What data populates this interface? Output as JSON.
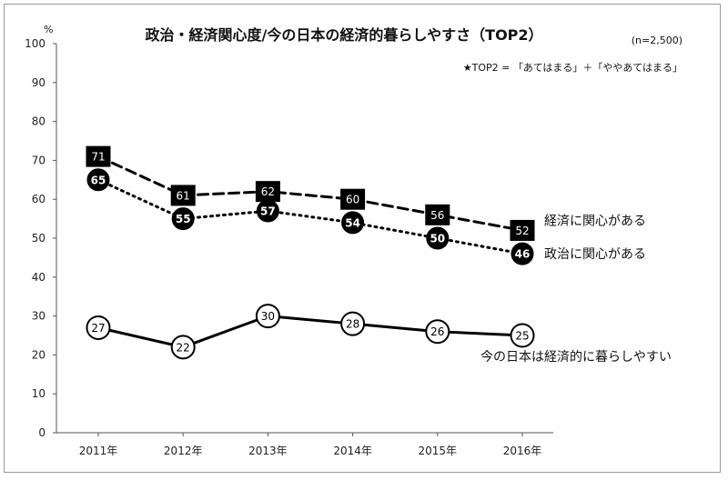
{
  "chart_data": {
    "type": "line",
    "title": "政治・経済関心度/今の日本の経済的暮らしやすさ（TOP2）",
    "sample_note": "(n=2,500)",
    "top2_note": "★TOP2 = 「あてはまる」＋「ややあてはまる」",
    "yunit": "%",
    "ylim": [
      0,
      100
    ],
    "yticks": [
      "0",
      "10",
      "20",
      "30",
      "40",
      "50",
      "60",
      "70",
      "80",
      "90",
      "100"
    ],
    "categories": [
      "2011年",
      "2012年",
      "2013年",
      "2014年",
      "2015年",
      "2016年"
    ],
    "grid": false,
    "series": [
      {
        "name": "経済に関心がある",
        "values": [
          71,
          61,
          62,
          60,
          56,
          52
        ],
        "line_style": "dashed",
        "marker": "square-filled"
      },
      {
        "name": "政治に関心がある",
        "values": [
          65,
          55,
          57,
          54,
          50,
          46
        ],
        "line_style": "dotted",
        "marker": "circle-filled"
      },
      {
        "name": "今の日本は経済的に暮らしやすい",
        "values": [
          27,
          22,
          30,
          28,
          26,
          25
        ],
        "line_style": "solid",
        "marker": "circle-open"
      }
    ]
  }
}
